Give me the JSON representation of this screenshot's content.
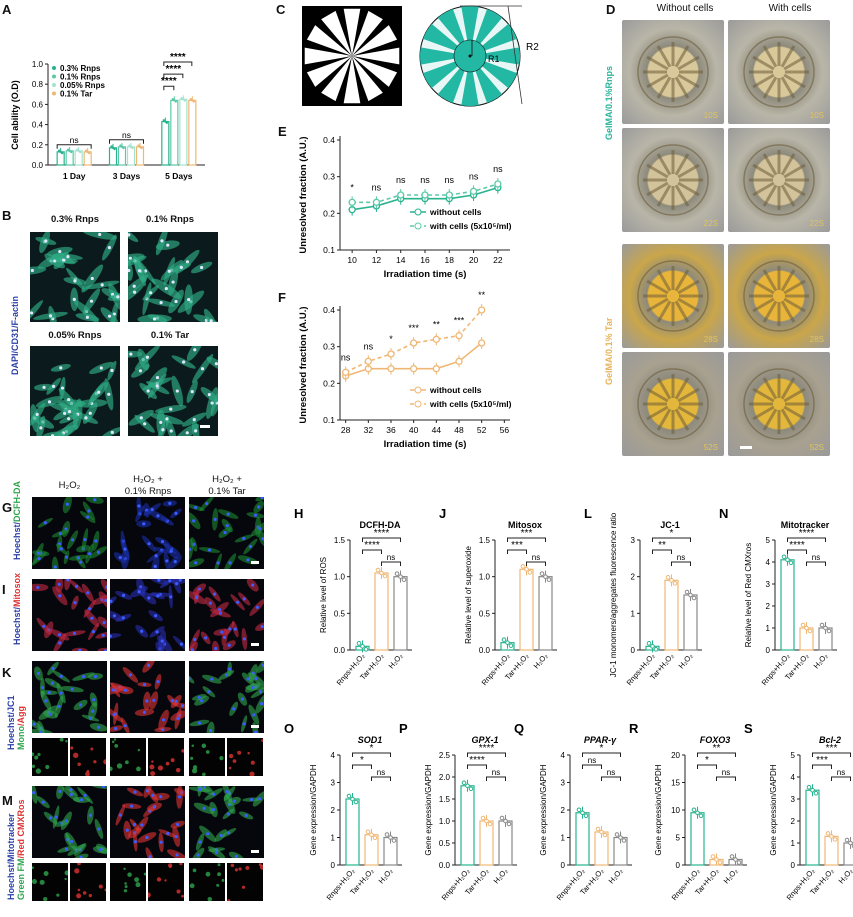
{
  "panels": {
    "A": {
      "label": "A",
      "ylabel": "Cell ability (O.D)",
      "yticks": [
        "0.0",
        "0.2",
        "0.4",
        "0.6",
        "0.8",
        "1.0"
      ],
      "groups": [
        "1 Day",
        "3 Days",
        "5 Days"
      ],
      "legend": [
        "0.3% Rnps",
        "0.1% Rnps",
        "0.05% Rnps",
        "0.1% Tar"
      ],
      "sig_ns": "ns",
      "sig_star": "****"
    },
    "B": {
      "label": "B",
      "titles": [
        "0.3% Rnps",
        "0.1% Rnps",
        "0.05% Rnps",
        "0.1% Tar"
      ],
      "stain": "DAPI/CD31/F-actin"
    },
    "C": {
      "label": "C",
      "r1": "R1",
      "r2": "R2"
    },
    "D": {
      "label": "D",
      "col1": "Without cells",
      "col2": "With cells",
      "row_a": "GelMA/0.1%Rnps",
      "row_b": "GelMA/0.1% Tar",
      "tags": [
        "10S",
        "10S",
        "22S",
        "22S",
        "28S",
        "28S",
        "52S",
        "52S"
      ]
    },
    "E": {
      "label": "E",
      "ylabel": "Unresolved fraction (A.U.)",
      "xlabel": "Irradiation time (s)",
      "xticks": [
        "10",
        "12",
        "14",
        "16",
        "18",
        "20",
        "22"
      ],
      "yticks": [
        "0.1",
        "0.2",
        "0.3",
        "0.4"
      ],
      "sig": [
        "*",
        "ns",
        "ns",
        "ns",
        "ns",
        "ns",
        "ns"
      ],
      "legend": [
        "without cells",
        "with cells (5x10⁵/ml)"
      ]
    },
    "F": {
      "label": "F",
      "ylabel": "Unresolved fraction (A.U.)",
      "xlabel": "Irradiation time (s)",
      "xticks": [
        "28",
        "32",
        "36",
        "40",
        "44",
        "48",
        "52",
        "56"
      ],
      "yticks": [
        "0.1",
        "0.2",
        "0.3",
        "0.4"
      ],
      "sig": [
        "ns",
        "ns",
        "*",
        "***",
        "**",
        "***",
        "**"
      ],
      "legend": [
        "without cells",
        "with cells (5x10⁵/ml)"
      ]
    },
    "G": {
      "label": "G",
      "cols": [
        "H₂O₂",
        "H₂O₂ +",
        "H₂O₂ +"
      ],
      "cols2": [
        "",
        "0.1% Rnps",
        "0.1% Tar"
      ],
      "stain_a": "Hoechst/",
      "stain_b": "DCFH-DA"
    },
    "I": {
      "label": "I",
      "stain_a": "Hoechst/",
      "stain_b": "Mitosox"
    },
    "K": {
      "label": "K",
      "stain_a": "Hoechst/JC1",
      "stain_b": "Mono",
      "stain_c": "/Agg"
    },
    "M": {
      "label": "M",
      "stain_a": "Hoechst/Mitotracker",
      "stain_b": "Green FM",
      "stain_c": "/Red CMXRos"
    }
  },
  "bar_panels": [
    {
      "id": "H",
      "title": "DCFH-DA",
      "ylabel": "Relative level of ROS",
      "yticks": [
        "0.0",
        "0.5",
        "1.0",
        "1.5"
      ],
      "cats": [
        "Rnps+H₂O₂",
        "Tar+H₂O₂",
        "H₂O₂"
      ],
      "sig": [
        "****",
        "****",
        "ns"
      ]
    },
    {
      "id": "J",
      "title": "Mitosox",
      "ylabel": "Relative level of superoxide",
      "yticks": [
        "0.0",
        "0.5",
        "1.0",
        "1.5"
      ],
      "cats": [
        "Rnps+H₂O₂",
        "Tar+H₂O₂",
        "H₂O₂"
      ],
      "sig": [
        "***",
        "***",
        "ns"
      ]
    },
    {
      "id": "L",
      "title": "JC-1",
      "ylabel": "JC-1 monomers/aggregates fluorescence ratio",
      "yticks": [
        "0",
        "1",
        "2",
        "3"
      ],
      "cats": [
        "Rnps+H₂O₂",
        "Tar+H₂O₂",
        "H₂O₂"
      ],
      "sig": [
        "*",
        "**",
        "ns"
      ]
    },
    {
      "id": "N",
      "title": "Mitotracker",
      "ylabel": "Relative level of Red CMXros",
      "yticks": [
        "0",
        "1",
        "2",
        "3",
        "4",
        "5"
      ],
      "cats": [
        "Rnps+H₂O₂",
        "Tar+H₂O₂",
        "H₂O₂"
      ],
      "sig": [
        "****",
        "****",
        "ns"
      ]
    },
    {
      "id": "O",
      "title": "SOD1",
      "ylabel": "Gene expression/GAPDH",
      "yticks": [
        "0",
        "1",
        "2",
        "3",
        "4"
      ],
      "cats": [
        "Rnps+H₂O₂",
        "Tar+H₂O₂",
        "H₂O₂"
      ],
      "sig": [
        "*",
        "*",
        "ns"
      ]
    },
    {
      "id": "P",
      "title": "GPX-1",
      "ylabel": "Gene expression/GAPDH",
      "yticks": [
        "0.0",
        "0.5",
        "1.0",
        "1.5",
        "2.0",
        "2.5"
      ],
      "cats": [
        "Rnps+H₂O₂",
        "Tar+H₂O₂",
        "H₂O₂"
      ],
      "sig": [
        "****",
        "****",
        "ns"
      ]
    },
    {
      "id": "Q",
      "title": "PPAR-γ",
      "ylabel": "Gene expression/GAPDH",
      "yticks": [
        "0",
        "1",
        "2",
        "3",
        "4"
      ],
      "cats": [
        "Rnps+H₂O₂",
        "Tar+H₂O₂",
        "H₂O₂"
      ],
      "sig": [
        "*",
        "ns",
        "ns"
      ]
    },
    {
      "id": "R",
      "title": "FOXO3",
      "ylabel": "Gene expression/GAPDH",
      "yticks": [
        "0",
        "5",
        "10",
        "15",
        "20"
      ],
      "cats": [
        "Rnps+H₂O₂",
        "Tar+H₂O₂",
        "H₂O₂"
      ],
      "sig": [
        "**",
        "*",
        "ns"
      ]
    },
    {
      "id": "S",
      "title": "Bcl-2",
      "ylabel": "Gene expression/GAPDH",
      "yticks": [
        "0",
        "1",
        "2",
        "3",
        "4",
        "5"
      ],
      "cats": [
        "Rnps+H₂O₂",
        "Tar+H₂O₂",
        "H₂O₂"
      ],
      "sig": [
        "***",
        "***",
        "ns"
      ]
    }
  ],
  "chart_data": [
    {
      "id": "A",
      "type": "bar",
      "categories": [
        "1 Day",
        "3 Days",
        "5 Days"
      ],
      "ylim": [
        0,
        1.0
      ],
      "series": [
        {
          "name": "0.3% Rnps",
          "values": [
            0.13,
            0.17,
            0.43
          ]
        },
        {
          "name": "0.1% Rnps",
          "values": [
            0.14,
            0.18,
            0.64
          ]
        },
        {
          "name": "0.05% Rnps",
          "values": [
            0.14,
            0.18,
            0.65
          ]
        },
        {
          "name": "0.1% Tar",
          "values": [
            0.13,
            0.18,
            0.64
          ]
        }
      ]
    },
    {
      "id": "E",
      "type": "line",
      "x": [
        10,
        12,
        14,
        16,
        18,
        20,
        22
      ],
      "ylim": [
        0.1,
        0.4
      ],
      "series": [
        {
          "name": "without cells",
          "values": [
            0.21,
            0.22,
            0.24,
            0.24,
            0.24,
            0.25,
            0.27
          ]
        },
        {
          "name": "with cells (5x10⁵/ml)",
          "values": [
            0.23,
            0.23,
            0.25,
            0.25,
            0.25,
            0.26,
            0.28
          ]
        }
      ]
    },
    {
      "id": "F",
      "type": "line",
      "x": [
        28,
        32,
        36,
        40,
        44,
        48,
        52
      ],
      "ylim": [
        0.1,
        0.4
      ],
      "series": [
        {
          "name": "without cells",
          "values": [
            0.22,
            0.24,
            0.24,
            0.24,
            0.24,
            0.26,
            0.31
          ]
        },
        {
          "name": "with cells (5x10⁵/ml)",
          "values": [
            0.23,
            0.26,
            0.28,
            0.31,
            0.32,
            0.33,
            0.4
          ]
        }
      ]
    },
    {
      "id": "H",
      "type": "bar",
      "categories": [
        "Rnps+H₂O₂",
        "Tar+H₂O₂",
        "H₂O₂"
      ],
      "values": [
        0.05,
        1.05,
        1.0
      ],
      "ylim": [
        0,
        1.5
      ]
    },
    {
      "id": "J",
      "type": "bar",
      "categories": [
        "Rnps+H₂O₂",
        "Tar+H₂O₂",
        "H₂O₂"
      ],
      "values": [
        0.1,
        1.1,
        1.0
      ],
      "ylim": [
        0,
        1.5
      ]
    },
    {
      "id": "L",
      "type": "bar",
      "categories": [
        "Rnps+H₂O₂",
        "Tar+H₂O₂",
        "H₂O₂"
      ],
      "values": [
        0.1,
        1.9,
        1.5
      ],
      "ylim": [
        0,
        3
      ]
    },
    {
      "id": "N",
      "type": "bar",
      "categories": [
        "Rnps+H₂O₂",
        "Tar+H₂O₂",
        "H₂O₂"
      ],
      "values": [
        4.1,
        1.0,
        1.0
      ],
      "ylim": [
        0,
        5
      ]
    },
    {
      "id": "O",
      "type": "bar",
      "categories": [
        "Rnps+H₂O₂",
        "Tar+H₂O₂",
        "H₂O₂"
      ],
      "values": [
        2.4,
        1.1,
        1.0
      ],
      "ylim": [
        0,
        4
      ]
    },
    {
      "id": "P",
      "type": "bar",
      "categories": [
        "Rnps+H₂O₂",
        "Tar+H₂O₂",
        "H₂O₂"
      ],
      "values": [
        1.8,
        1.0,
        1.0
      ],
      "ylim": [
        0,
        2.5
      ]
    },
    {
      "id": "Q",
      "type": "bar",
      "categories": [
        "Rnps+H₂O₂",
        "Tar+H₂O₂",
        "H₂O₂"
      ],
      "values": [
        1.9,
        1.2,
        1.0
      ],
      "ylim": [
        0,
        4
      ]
    },
    {
      "id": "R",
      "type": "bar",
      "categories": [
        "Rnps+H₂O₂",
        "Tar+H₂O₂",
        "H₂O₂"
      ],
      "values": [
        9.5,
        1.0,
        1.0
      ],
      "ylim": [
        0,
        20
      ]
    },
    {
      "id": "S",
      "type": "bar",
      "categories": [
        "Rnps+H₂O₂",
        "Tar+H₂O₂",
        "H₂O₂"
      ],
      "values": [
        3.4,
        1.3,
        1.0
      ],
      "ylim": [
        0,
        5
      ]
    }
  ],
  "colors": {
    "rnps": "#27b38e",
    "tar": "#f0b774",
    "rnps2": "#5cc9a8",
    "rnps3": "#a5e3cf"
  }
}
